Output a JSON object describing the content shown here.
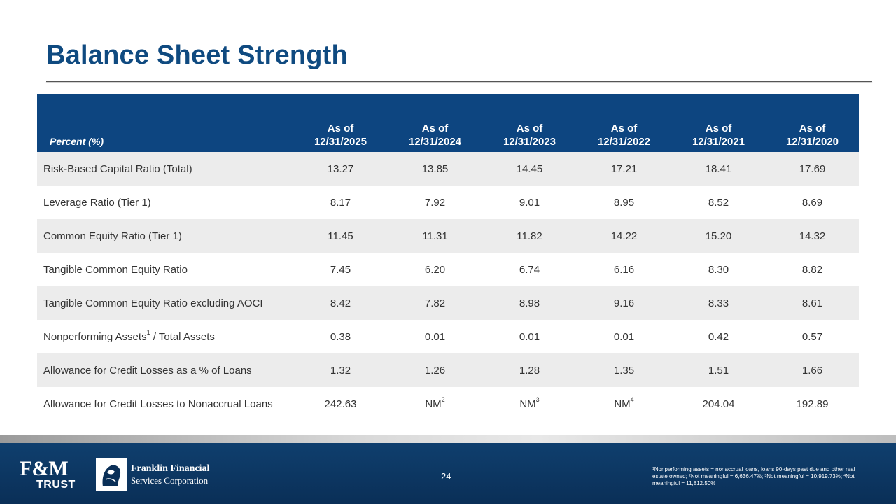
{
  "title": "Balance Sheet Strength",
  "table": {
    "corner_label": "Percent (%)",
    "columns": [
      {
        "line1": "As of",
        "line2": "12/31/2025"
      },
      {
        "line1": "As of",
        "line2": "12/31/2024"
      },
      {
        "line1": "As of",
        "line2": "12/31/2023"
      },
      {
        "line1": "As of",
        "line2": "12/31/2022"
      },
      {
        "line1": "As of",
        "line2": "12/31/2021"
      },
      {
        "line1": "As of",
        "line2": "12/31/2020"
      }
    ],
    "rows": [
      {
        "label": "Risk-Based Capital Ratio (Total)",
        "values": [
          "13.27",
          "13.85",
          "14.45",
          "17.21",
          "18.41",
          "17.69"
        ]
      },
      {
        "label": "Leverage Ratio (Tier 1)",
        "values": [
          "8.17",
          "7.92",
          "9.01",
          "8.95",
          "8.52",
          "8.69"
        ]
      },
      {
        "label": "Common Equity Ratio (Tier 1)",
        "values": [
          "11.45",
          "11.31",
          "11.82",
          "14.22",
          "15.20",
          "14.32"
        ]
      },
      {
        "label": "Tangible Common Equity Ratio",
        "values": [
          "7.45",
          "6.20",
          "6.74",
          "6.16",
          "8.30",
          "8.82"
        ]
      },
      {
        "label": "Tangible Common Equity Ratio excluding AOCI",
        "values": [
          "8.42",
          "7.82",
          "8.98",
          "9.16",
          "8.33",
          "8.61"
        ]
      },
      {
        "label": "Nonperforming Assets",
        "label_sup": "1",
        "label_suffix": " / Total Assets",
        "values": [
          "0.38",
          "0.01",
          "0.01",
          "0.01",
          "0.42",
          "0.57"
        ]
      },
      {
        "label": "Allowance for Credit Losses as a % of Loans",
        "values": [
          "1.32",
          "1.26",
          "1.28",
          "1.35",
          "1.51",
          "1.66"
        ]
      },
      {
        "label": "Allowance for Credit Losses to Nonaccrual Loans",
        "values": [
          "242.63",
          "NM",
          "NM",
          "NM",
          "204.04",
          "192.89"
        ],
        "value_sups": [
          "",
          "2",
          "3",
          "4",
          "",
          ""
        ]
      }
    ]
  },
  "footer": {
    "fm_logo_top": "F&M",
    "fm_logo_bottom": "TRUST",
    "ffsc_line1": "Franklin Financial",
    "ffsc_line2": "Services Corporation",
    "page_number": "24",
    "footnote": "Nonperforming assets = nonaccrual loans, loans 90-days past due and other real estate owned; Not meaningful = 6,636.47%; Not meaningful = 10,919.73%; Not meaningful = 11,812.50%",
    "footnote_parts": [
      {
        "sup": "1",
        "text": "Nonperforming assets = nonaccrual loans, loans 90-days past due and other real estate owned; "
      },
      {
        "sup": "2",
        "text": "Not meaningful = 6,636.47%; "
      },
      {
        "sup": "3",
        "text": "Not meaningful = 10,919.73%; "
      },
      {
        "sup": "4",
        "text": "Not meaningful = 11,812.50%"
      }
    ]
  },
  "colors": {
    "title": "#0f4a80",
    "header_bg": "#0d4580",
    "footer_bg": "#0a2f57",
    "row_stripe": "#ececec"
  }
}
